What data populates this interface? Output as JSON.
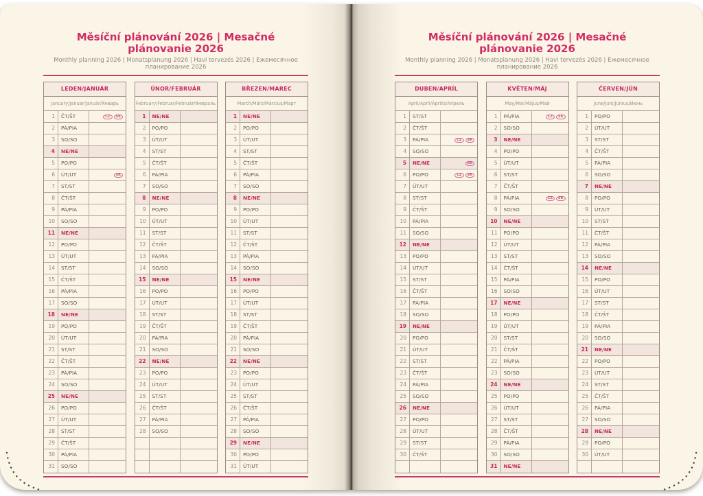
{
  "header": {
    "title": "Měsíční plánování 2026 | Mesačné plánovanie 2026",
    "subtitle": "Monthly planning 2026 | Monatsplanung 2026 | Havi tervezés 2026 | Ежемесячное планирование 2026"
  },
  "colors": {
    "accent_magenta": "#d02d66",
    "sunday_red": "#c22d52",
    "paper_cream": "#fbf5e7",
    "sunday_row_bg": "#f1e5de",
    "grid_line": "#9d8a81",
    "header_cell_bg": "#f6ebe2"
  },
  "months": [
    {
      "id": "january",
      "name": "LEDEN/JANUÁR",
      "subtitle": "January/Januar/Január/Январь",
      "blank_rows": 0,
      "days": [
        [
          1,
          "ČT/ŠT",
          [
            "CZ",
            "SK"
          ]
        ],
        [
          2,
          "PÁ/PIA"
        ],
        [
          3,
          "SO/SO"
        ],
        [
          4,
          "NE/NE"
        ],
        [
          5,
          "PO/PO"
        ],
        [
          6,
          "ÚT/UT",
          [
            "SK"
          ]
        ],
        [
          7,
          "ST/ST"
        ],
        [
          8,
          "ČT/ŠT"
        ],
        [
          9,
          "PÁ/PIA"
        ],
        [
          10,
          "SO/SO"
        ],
        [
          11,
          "NE/NE"
        ],
        [
          12,
          "PO/PO"
        ],
        [
          13,
          "ÚT/UT"
        ],
        [
          14,
          "ST/ST"
        ],
        [
          15,
          "ČT/ŠT"
        ],
        [
          16,
          "PÁ/PIA"
        ],
        [
          17,
          "SO/SO"
        ],
        [
          18,
          "NE/NE"
        ],
        [
          19,
          "PO/PO"
        ],
        [
          20,
          "ÚT/UT"
        ],
        [
          21,
          "ST/ST"
        ],
        [
          22,
          "ČT/ŠT"
        ],
        [
          23,
          "PÁ/PIA"
        ],
        [
          24,
          "SO/SO"
        ],
        [
          25,
          "NE/NE"
        ],
        [
          26,
          "PO/PO"
        ],
        [
          27,
          "ÚT/UT"
        ],
        [
          28,
          "ST/ST"
        ],
        [
          29,
          "ČT/ŠT"
        ],
        [
          30,
          "PÁ/PIA"
        ],
        [
          31,
          "SO/SO"
        ]
      ]
    },
    {
      "id": "february",
      "name": "ÚNOR/FEBRUÁR",
      "subtitle": "February/Februar/Február/Февраль",
      "blank_rows": 3,
      "days": [
        [
          1,
          "NE/NE"
        ],
        [
          2,
          "PO/PO"
        ],
        [
          3,
          "ÚT/UT"
        ],
        [
          4,
          "ST/ST"
        ],
        [
          5,
          "ČT/ŠT"
        ],
        [
          6,
          "PÁ/PIA"
        ],
        [
          7,
          "SO/SO"
        ],
        [
          8,
          "NE/NE"
        ],
        [
          9,
          "PO/PO"
        ],
        [
          10,
          "ÚT/UT"
        ],
        [
          11,
          "ST/ST"
        ],
        [
          12,
          "ČT/ŠT"
        ],
        [
          13,
          "PÁ/PIA"
        ],
        [
          14,
          "SO/SO"
        ],
        [
          15,
          "NE/NE"
        ],
        [
          16,
          "PO/PO"
        ],
        [
          17,
          "ÚT/UT"
        ],
        [
          18,
          "ST/ST"
        ],
        [
          19,
          "ČT/ŠT"
        ],
        [
          20,
          "PÁ/PIA"
        ],
        [
          21,
          "SO/SO"
        ],
        [
          22,
          "NE/NE"
        ],
        [
          23,
          "PO/PO"
        ],
        [
          24,
          "ÚT/UT"
        ],
        [
          25,
          "ST/ST"
        ],
        [
          26,
          "ČT/ŠT"
        ],
        [
          27,
          "PÁ/PIA"
        ],
        [
          28,
          "SO/SO"
        ]
      ]
    },
    {
      "id": "march",
      "name": "BŘEZEN/MAREC",
      "subtitle": "March/März/Március/Март",
      "blank_rows": 0,
      "days": [
        [
          1,
          "NE/NE"
        ],
        [
          2,
          "PO/PO"
        ],
        [
          3,
          "ÚT/UT"
        ],
        [
          4,
          "ST/ST"
        ],
        [
          5,
          "ČT/ŠT"
        ],
        [
          6,
          "PÁ/PIA"
        ],
        [
          7,
          "SO/SO"
        ],
        [
          8,
          "NE/NE"
        ],
        [
          9,
          "PO/PO"
        ],
        [
          10,
          "ÚT/UT"
        ],
        [
          11,
          "ST/ST"
        ],
        [
          12,
          "ČT/ŠT"
        ],
        [
          13,
          "PÁ/PIA"
        ],
        [
          14,
          "SO/SO"
        ],
        [
          15,
          "NE/NE"
        ],
        [
          16,
          "PO/PO"
        ],
        [
          17,
          "ÚT/UT"
        ],
        [
          18,
          "ST/ST"
        ],
        [
          19,
          "ČT/ŠT"
        ],
        [
          20,
          "PÁ/PIA"
        ],
        [
          21,
          "SO/SO"
        ],
        [
          22,
          "NE/NE"
        ],
        [
          23,
          "PO/PO"
        ],
        [
          24,
          "ÚT/UT"
        ],
        [
          25,
          "ST/ST"
        ],
        [
          26,
          "ČT/ŠT"
        ],
        [
          27,
          "PÁ/PIA"
        ],
        [
          28,
          "SO/SO"
        ],
        [
          29,
          "NE/NE"
        ],
        [
          30,
          "PO/PO"
        ],
        [
          31,
          "ÚT/UT"
        ]
      ]
    },
    {
      "id": "april",
      "name": "DUBEN/APRÍL",
      "subtitle": "April/April/Április/Апрель",
      "blank_rows": 1,
      "days": [
        [
          1,
          "ST/ST"
        ],
        [
          2,
          "ČT/ŠT"
        ],
        [
          3,
          "PÁ/PIA",
          [
            "CZ",
            "SK"
          ]
        ],
        [
          4,
          "SO/SO"
        ],
        [
          5,
          "NE/NE",
          [
            "SK"
          ]
        ],
        [
          6,
          "PO/PO",
          [
            "CZ",
            "SK"
          ]
        ],
        [
          7,
          "ÚT/UT"
        ],
        [
          8,
          "ST/ST"
        ],
        [
          9,
          "ČT/ŠT"
        ],
        [
          10,
          "PÁ/PIA"
        ],
        [
          11,
          "SO/SO"
        ],
        [
          12,
          "NE/NE"
        ],
        [
          13,
          "PO/PO"
        ],
        [
          14,
          "ÚT/UT"
        ],
        [
          15,
          "ST/ST"
        ],
        [
          16,
          "ČT/ŠT"
        ],
        [
          17,
          "PÁ/PIA"
        ],
        [
          18,
          "SO/SO"
        ],
        [
          19,
          "NE/NE"
        ],
        [
          20,
          "PO/PO"
        ],
        [
          21,
          "ÚT/UT"
        ],
        [
          22,
          "ST/ST"
        ],
        [
          23,
          "ČT/ŠT"
        ],
        [
          24,
          "PÁ/PIA"
        ],
        [
          25,
          "SO/SO"
        ],
        [
          26,
          "NE/NE"
        ],
        [
          27,
          "PO/PO"
        ],
        [
          28,
          "ÚT/UT"
        ],
        [
          29,
          "ST/ST"
        ],
        [
          30,
          "ČT/ŠT"
        ]
      ]
    },
    {
      "id": "may",
      "name": "KVĚTEN/MÁJ",
      "subtitle": "May/Mai/Május/Май",
      "blank_rows": 0,
      "days": [
        [
          1,
          "PÁ/PIA",
          [
            "CZ",
            "SK"
          ]
        ],
        [
          2,
          "SO/SO"
        ],
        [
          3,
          "NE/NE"
        ],
        [
          4,
          "PO/PO"
        ],
        [
          5,
          "ÚT/UT"
        ],
        [
          6,
          "ST/ST"
        ],
        [
          7,
          "ČT/ŠT"
        ],
        [
          8,
          "PÁ/PIA",
          [
            "CZ",
            "SK"
          ]
        ],
        [
          9,
          "SO/SO"
        ],
        [
          10,
          "NE/NE"
        ],
        [
          11,
          "PO/PO"
        ],
        [
          12,
          "ÚT/UT"
        ],
        [
          13,
          "ST/ST"
        ],
        [
          14,
          "ČT/ŠT"
        ],
        [
          15,
          "PÁ/PIA"
        ],
        [
          16,
          "SO/SO"
        ],
        [
          17,
          "NE/NE"
        ],
        [
          18,
          "PO/PO"
        ],
        [
          19,
          "ÚT/UT"
        ],
        [
          20,
          "ST/ST"
        ],
        [
          21,
          "ČT/ŠT"
        ],
        [
          22,
          "PÁ/PIA"
        ],
        [
          23,
          "SO/SO"
        ],
        [
          24,
          "NE/NE"
        ],
        [
          25,
          "PO/PO"
        ],
        [
          26,
          "ÚT/UT"
        ],
        [
          27,
          "ST/ST"
        ],
        [
          28,
          "ČT/ŠT"
        ],
        [
          29,
          "PÁ/PIA"
        ],
        [
          30,
          "SO/SO"
        ],
        [
          31,
          "NE/NE"
        ]
      ]
    },
    {
      "id": "june",
      "name": "ČERVEN/JÚN",
      "subtitle": "June/Juni/Június/Июнь",
      "blank_rows": 1,
      "days": [
        [
          1,
          "PO/PO"
        ],
        [
          2,
          "ÚT/UT"
        ],
        [
          3,
          "ST/ST"
        ],
        [
          4,
          "ČT/ŠT"
        ],
        [
          5,
          "PÁ/PIA"
        ],
        [
          6,
          "SO/SO"
        ],
        [
          7,
          "NE/NE"
        ],
        [
          8,
          "PO/PO"
        ],
        [
          9,
          "ÚT/UT"
        ],
        [
          10,
          "ST/ST"
        ],
        [
          11,
          "ČT/ŠT"
        ],
        [
          12,
          "PÁ/PIA"
        ],
        [
          13,
          "SO/SO"
        ],
        [
          14,
          "NE/NE"
        ],
        [
          15,
          "PO/PO"
        ],
        [
          16,
          "ÚT/UT"
        ],
        [
          17,
          "ST/ST"
        ],
        [
          18,
          "ČT/ŠT"
        ],
        [
          19,
          "PÁ/PIA"
        ],
        [
          20,
          "SO/SO"
        ],
        [
          21,
          "NE/NE"
        ],
        [
          22,
          "PO/PO"
        ],
        [
          23,
          "ÚT/UT"
        ],
        [
          24,
          "ST/ST"
        ],
        [
          25,
          "ČT/ŠT"
        ],
        [
          26,
          "PÁ/PIA"
        ],
        [
          27,
          "SO/SO"
        ],
        [
          28,
          "NE/NE"
        ],
        [
          29,
          "PO/PO"
        ],
        [
          30,
          "ÚT/UT"
        ]
      ]
    }
  ]
}
